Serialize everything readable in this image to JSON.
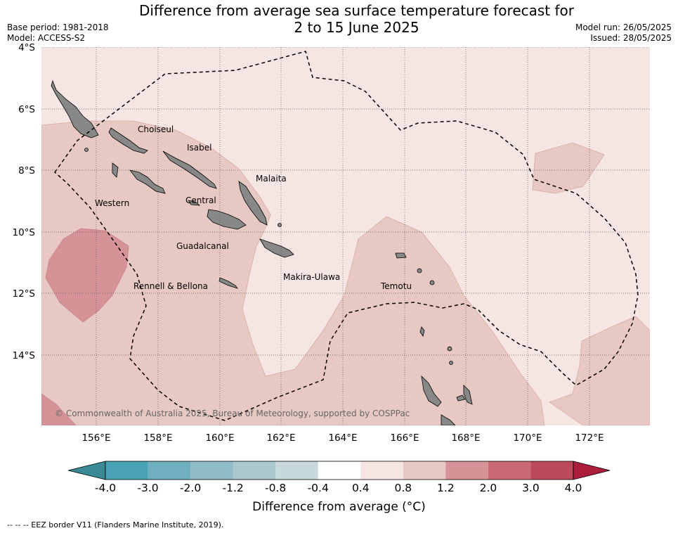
{
  "title_line1": "Difference from average sea surface temperature forecast for",
  "title_line2": "2 to 15 June 2025",
  "base_period": "Base period: 1981-2018",
  "model": "Model: ACCESS-S2",
  "model_run": "Model run: 26/05/2025",
  "issued": "Issued: 28/05/2025",
  "copyright": "© Commonwealth of Australia 2025, Bureau of Meteorology, supported by COSPPac",
  "lat_labels": [
    "4°S",
    "6°S",
    "8°S",
    "10°S",
    "12°S",
    "14°S"
  ],
  "lon_labels": [
    "156°E",
    "158°E",
    "160°E",
    "162°E",
    "164°E",
    "166°E",
    "168°E",
    "170°E",
    "172°E"
  ],
  "provinces": {
    "choiseul": "Choiseul",
    "isabel": "Isabel",
    "malaita": "Malaita",
    "western": "Western",
    "central": "Central",
    "guadalcanal": "Guadalcanal",
    "makira": "Makira-Ulawa",
    "rennell": "Rennell & Bellona",
    "temotu": "Temotu"
  },
  "colorbar": {
    "ticks": [
      "-4.0",
      "-3.0",
      "-2.0",
      "-1.2",
      "-0.8",
      "-0.4",
      "0.4",
      "0.8",
      "1.2",
      "2.0",
      "3.0",
      "4.0"
    ],
    "colors": [
      "#3a8a96",
      "#4aa3b5",
      "#6fafbf",
      "#8fbcc7",
      "#aac8cd",
      "#c8d9dc",
      "#ffffff",
      "#f5e6e4",
      "#e8c8c3",
      "#d69397",
      "#c96a75",
      "#bd4a5a",
      "#ad1e3c"
    ],
    "title": "Difference from average (°C)"
  },
  "footer": "--  --  -- EEZ border V11 (Flanders Marine Institute, 2019)."
}
